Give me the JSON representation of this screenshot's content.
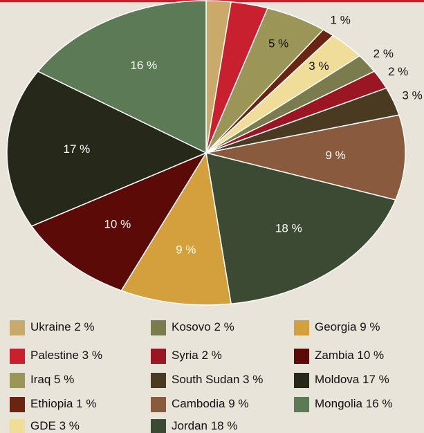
{
  "chart_data": {
    "type": "pie",
    "categories": [
      "Ukraine",
      "Palestine",
      "Iraq",
      "Ethiopia",
      "GDE",
      "Kosovo",
      "Syria",
      "South Sudan",
      "Cambodia",
      "Jordan",
      "Georgia",
      "Zambia",
      "Moldova",
      "Mongolia"
    ],
    "values": [
      2,
      3,
      5,
      1,
      3,
      2,
      2,
      3,
      9,
      18,
      9,
      10,
      17,
      16
    ],
    "value_labels": [
      "2 %",
      "3 %",
      "5 %",
      "1 %",
      "3 %",
      "2 %",
      "2 %",
      "3 %",
      "9 %",
      "18 %",
      "9 %",
      "10 %",
      "17 %",
      "16 %"
    ],
    "colors": [
      "#c9aa6a",
      "#c8202f",
      "#9b9658",
      "#6b2412",
      "#f0dd9a",
      "#7b7c4e",
      "#9a1623",
      "#4a3a22",
      "#8a5a3e",
      "#3d4a33",
      "#d4a03e",
      "#5c0a08",
      "#262819",
      "#5c7a56"
    ]
  }
}
